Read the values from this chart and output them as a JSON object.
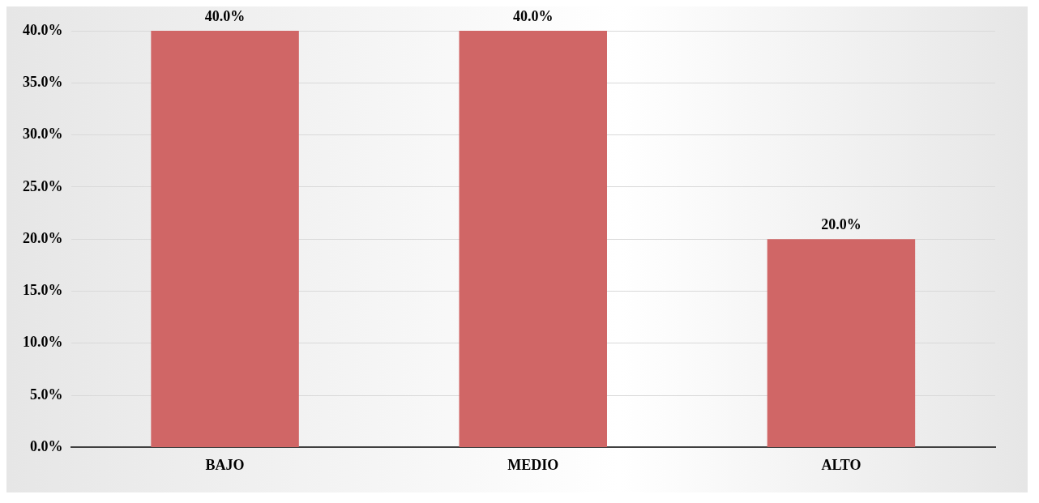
{
  "chart_data": {
    "type": "bar",
    "categories": [
      "BAJO",
      "MEDIO",
      "ALTO"
    ],
    "values": [
      40,
      40,
      20
    ],
    "color": "#d06666",
    "value_labels": [
      "40.0%",
      "40.0%",
      "20.0%"
    ],
    "ylim": [
      0,
      40
    ],
    "yticks": [
      {
        "value": 0,
        "label": "0.0%"
      },
      {
        "value": 5,
        "label": "5.0%"
      },
      {
        "value": 10,
        "label": "10.0%"
      },
      {
        "value": 15,
        "label": "15.0%"
      },
      {
        "value": 20,
        "label": "20.0%"
      },
      {
        "value": 25,
        "label": "25.0%"
      },
      {
        "value": 30,
        "label": "30.0%"
      },
      {
        "value": 35,
        "label": "35.0%"
      },
      {
        "value": 40,
        "label": "40.0%"
      }
    ],
    "grid": "y",
    "legend": false
  }
}
